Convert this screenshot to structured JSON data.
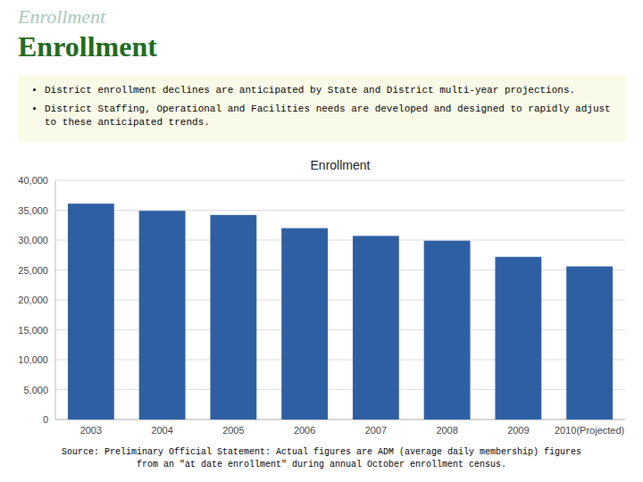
{
  "chart_data": {
    "type": "bar",
    "title": "Enrollment",
    "categories": [
      "2003",
      "2004",
      "2005",
      "2006",
      "2007",
      "2008",
      "2009",
      "2010(Projected)"
    ],
    "values": [
      36100,
      34900,
      34200,
      32000,
      30700,
      29900,
      27200,
      25600
    ],
    "color": "#2E5FA3",
    "ylim": [
      0,
      40000
    ],
    "yticks": [
      0,
      {
        "value": 5000,
        "label": "5,000"
      },
      {
        "value": 10000,
        "label": "10,000"
      },
      {
        "value": 15000,
        "label": "15,000"
      },
      {
        "value": 20000,
        "label": "20,000"
      },
      {
        "value": 25000,
        "label": "25,000"
      },
      {
        "value": 30000,
        "label": "30,000"
      },
      {
        "value": 35000,
        "label": "35,000"
      },
      {
        "value": 40000,
        "label": "40,000"
      }
    ],
    "grid": true,
    "annotations": [
      "Enrollment",
      "Enrollment",
      "District enrollment declines are anticipated by State and District multi-year projections.",
      "District Staffing, Operational and Facilities needs are developed and designed to rapidly adjust to these anticipated trends.",
      "Source:  Preliminary Official Statement: Actual figures are ADM (average daily membership) figures\nfrom an \"at date enrollment\" during annual October enrollment census."
    ]
  }
}
